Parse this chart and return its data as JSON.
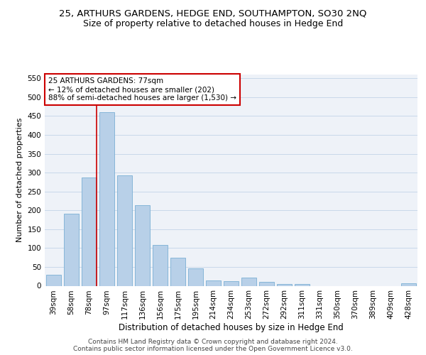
{
  "title": "25, ARTHURS GARDENS, HEDGE END, SOUTHAMPTON, SO30 2NQ",
  "subtitle": "Size of property relative to detached houses in Hedge End",
  "xlabel": "Distribution of detached houses by size in Hedge End",
  "ylabel": "Number of detached properties",
  "categories": [
    "39sqm",
    "58sqm",
    "78sqm",
    "97sqm",
    "117sqm",
    "136sqm",
    "156sqm",
    "175sqm",
    "195sqm",
    "214sqm",
    "234sqm",
    "253sqm",
    "272sqm",
    "292sqm",
    "311sqm",
    "331sqm",
    "350sqm",
    "370sqm",
    "389sqm",
    "409sqm",
    "428sqm"
  ],
  "values": [
    30,
    192,
    287,
    460,
    292,
    213,
    109,
    75,
    47,
    14,
    13,
    22,
    10,
    5,
    5,
    0,
    0,
    0,
    0,
    0,
    6
  ],
  "bar_color": "#b8d0e8",
  "bar_edge_color": "#7aafd4",
  "bar_width": 0.85,
  "marker_bin_index": 2,
  "marker_line_color": "#cc0000",
  "annotation_text": "25 ARTHURS GARDENS: 77sqm\n← 12% of detached houses are smaller (202)\n88% of semi-detached houses are larger (1,530) →",
  "annotation_box_color": "#cc0000",
  "ylim": [
    0,
    560
  ],
  "yticks": [
    0,
    50,
    100,
    150,
    200,
    250,
    300,
    350,
    400,
    450,
    500,
    550
  ],
  "grid_color": "#c8d8ea",
  "background_color": "#eef2f8",
  "footer_text": "Contains HM Land Registry data © Crown copyright and database right 2024.\nContains public sector information licensed under the Open Government Licence v3.0.",
  "title_fontsize": 9.5,
  "subtitle_fontsize": 9,
  "xlabel_fontsize": 8.5,
  "ylabel_fontsize": 8,
  "tick_fontsize": 7.5,
  "annotation_fontsize": 7.5,
  "footer_fontsize": 6.5
}
